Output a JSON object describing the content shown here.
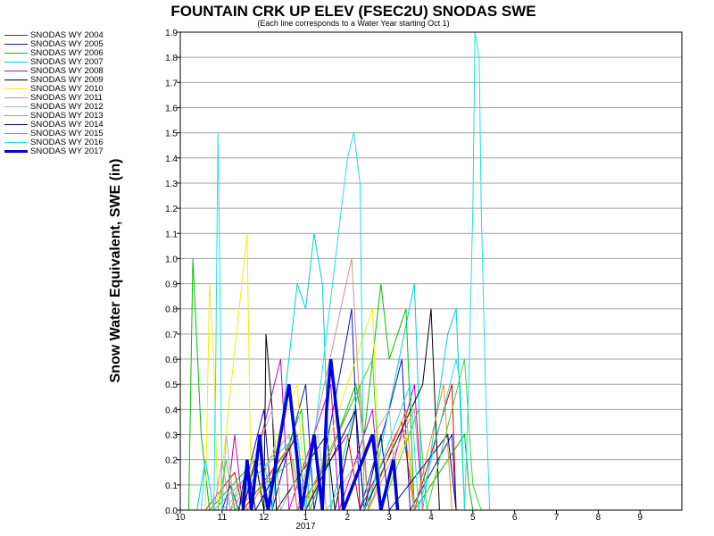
{
  "chart_data": {
    "type": "line",
    "title": "FOUNTAIN CRK UP ELEV (FSEC2U) SNODAS SWE",
    "subtitle": "(Each line corresponds to a Water Year starting Oct 1)",
    "ylabel": "Snow Water Equivalent, SWE (in)",
    "xlabel": "",
    "year_label": "2017",
    "x_ticks": [
      "10",
      "11",
      "12",
      "1",
      "2",
      "3",
      "4",
      "5",
      "6",
      "7",
      "8",
      "9"
    ],
    "y_ticks": [
      "0.0",
      "0.1",
      "0.2",
      "0.3",
      "0.4",
      "0.5",
      "0.6",
      "0.7",
      "0.8",
      "0.9",
      "1.0",
      "1.1",
      "1.2",
      "1.3",
      "1.4",
      "1.5",
      "1.6",
      "1.7",
      "1.8",
      "1.9"
    ],
    "ylim": [
      0,
      1.9
    ],
    "xlim": [
      0,
      12
    ],
    "grid": true,
    "legend_position": "left",
    "series": [
      {
        "name": "SNODAS WY 2004",
        "color": "#e00000",
        "width": 1,
        "points": [
          [
            0.6,
            0
          ],
          [
            1.3,
            0.15
          ],
          [
            1.5,
            0
          ],
          [
            2.6,
            0.25
          ],
          [
            2.8,
            0
          ],
          [
            4.0,
            0.3
          ],
          [
            4.3,
            0
          ],
          [
            5.3,
            0.35
          ],
          [
            5.6,
            0
          ],
          [
            6.5,
            0.5
          ],
          [
            6.6,
            0
          ],
          [
            6.7,
            0
          ]
        ]
      },
      {
        "name": "SNODAS WY 2005",
        "color": "#1010c0",
        "width": 1,
        "points": [
          [
            1.0,
            0
          ],
          [
            1.2,
            0.1
          ],
          [
            1.4,
            0
          ],
          [
            2.0,
            0.4
          ],
          [
            2.2,
            0
          ],
          [
            3.0,
            0.5
          ],
          [
            3.2,
            0
          ],
          [
            4.0,
            0.7
          ],
          [
            4.1,
            0.8
          ],
          [
            4.3,
            0
          ],
          [
            5.0,
            0.4
          ],
          [
            5.3,
            0.6
          ],
          [
            5.5,
            0
          ],
          [
            6.5,
            0.3
          ],
          [
            6.6,
            0
          ]
        ]
      },
      {
        "name": "SNODAS WY 2006",
        "color": "#00c000",
        "width": 1,
        "points": [
          [
            0.2,
            0
          ],
          [
            0.3,
            1.0
          ],
          [
            0.5,
            0.3
          ],
          [
            0.7,
            0
          ],
          [
            1.8,
            0.2
          ],
          [
            2.0,
            0
          ],
          [
            2.9,
            0.4
          ],
          [
            3.1,
            0
          ],
          [
            4.2,
            0.5
          ],
          [
            4.4,
            0.3
          ],
          [
            4.8,
            0.9
          ],
          [
            5.0,
            0.6
          ],
          [
            5.4,
            0.8
          ],
          [
            5.6,
            0
          ],
          [
            6.8,
            0.3
          ],
          [
            6.9,
            0.1
          ],
          [
            7.0,
            0
          ]
        ]
      },
      {
        "name": "SNODAS WY 2007",
        "color": "#00d0d0",
        "width": 1,
        "points": [
          [
            0.4,
            0
          ],
          [
            0.6,
            0.2
          ],
          [
            0.8,
            0
          ],
          [
            2.0,
            0.2
          ],
          [
            2.2,
            0
          ],
          [
            2.8,
            0.9
          ],
          [
            3.0,
            0.8
          ],
          [
            3.2,
            1.1
          ],
          [
            3.4,
            0.9
          ],
          [
            3.6,
            0
          ],
          [
            4.3,
            0.5
          ],
          [
            4.5,
            0
          ],
          [
            5.6,
            0.9
          ],
          [
            5.8,
            0
          ],
          [
            6.4,
            0.7
          ],
          [
            6.6,
            0.8
          ],
          [
            6.8,
            0
          ]
        ]
      },
      {
        "name": "SNODAS WY 2008",
        "color": "#c000c0",
        "width": 1,
        "points": [
          [
            1.1,
            0
          ],
          [
            1.3,
            0.3
          ],
          [
            1.5,
            0
          ],
          [
            2.4,
            0.6
          ],
          [
            2.6,
            0
          ],
          [
            3.6,
            0.5
          ],
          [
            3.8,
            0
          ],
          [
            4.6,
            0.4
          ],
          [
            4.8,
            0
          ],
          [
            5.6,
            0.5
          ],
          [
            5.8,
            0
          ]
        ]
      },
      {
        "name": "SNODAS WY 2009",
        "color": "#000000",
        "width": 1,
        "points": [
          [
            1.5,
            0
          ],
          [
            1.8,
            0.2
          ],
          [
            2.0,
            0
          ],
          [
            2.05,
            0.7
          ],
          [
            2.2,
            0.4
          ],
          [
            2.3,
            0
          ],
          [
            3.5,
            0.3
          ],
          [
            3.7,
            0
          ],
          [
            4.2,
            0.4
          ],
          [
            4.4,
            0
          ],
          [
            5.8,
            0.5
          ],
          [
            6.0,
            0.8
          ],
          [
            6.2,
            0
          ]
        ]
      },
      {
        "name": "SNODAS WY 2010",
        "color": "#f0f000",
        "width": 1,
        "points": [
          [
            0.6,
            0
          ],
          [
            0.7,
            0.9
          ],
          [
            0.8,
            0.6
          ],
          [
            0.9,
            0
          ],
          [
            1.6,
            1.1
          ],
          [
            1.7,
            0
          ],
          [
            2.8,
            0.5
          ],
          [
            3.0,
            0
          ],
          [
            4.6,
            0.8
          ],
          [
            4.8,
            0
          ],
          [
            5.4,
            0.3
          ],
          [
            5.6,
            0
          ]
        ]
      },
      {
        "name": "SNODAS WY 2011",
        "color": "#d09090",
        "width": 1,
        "points": [
          [
            0.8,
            0
          ],
          [
            1.0,
            0.2
          ],
          [
            1.2,
            0
          ],
          [
            2.6,
            0.3
          ],
          [
            2.8,
            0
          ],
          [
            4.1,
            1.0
          ],
          [
            4.3,
            0.4
          ],
          [
            4.5,
            0
          ],
          [
            5.6,
            0.4
          ],
          [
            5.8,
            0
          ]
        ]
      },
      {
        "name": "SNODAS WY 2012",
        "color": "#b0b0b0",
        "width": 1,
        "points": [
          [
            1.0,
            0
          ],
          [
            1.1,
            0.3
          ],
          [
            1.3,
            0
          ],
          [
            2.2,
            0.4
          ],
          [
            2.4,
            0
          ],
          [
            3.3,
            0.3
          ],
          [
            3.5,
            0
          ],
          [
            5.0,
            0.4
          ],
          [
            5.2,
            0
          ]
        ]
      },
      {
        "name": "SNODAS WY 2013",
        "color": "#e09020",
        "width": 1,
        "points": [
          [
            1.2,
            0
          ],
          [
            1.4,
            0.1
          ],
          [
            1.6,
            0
          ],
          [
            2.8,
            0.3
          ],
          [
            3.0,
            0
          ],
          [
            4.3,
            0.5
          ],
          [
            4.5,
            0
          ],
          [
            5.4,
            0.4
          ],
          [
            5.6,
            0
          ],
          [
            6.3,
            0.5
          ],
          [
            6.5,
            0
          ]
        ]
      },
      {
        "name": "SNODAS WY 2014",
        "color": "#000080",
        "width": 1,
        "points": [
          [
            1.4,
            0
          ],
          [
            1.6,
            0.2
          ],
          [
            1.8,
            0
          ],
          [
            2.8,
            0.3
          ],
          [
            3.0,
            0
          ],
          [
            4.2,
            0.4
          ],
          [
            4.4,
            0
          ],
          [
            4.8,
            0.3
          ],
          [
            5.0,
            0
          ],
          [
            6.4,
            0.3
          ],
          [
            6.6,
            0
          ]
        ]
      },
      {
        "name": "SNODAS WY 2015",
        "color": "#40d040",
        "width": 1,
        "points": [
          [
            0.9,
            0
          ],
          [
            1.1,
            0.2
          ],
          [
            1.3,
            0
          ],
          [
            2.7,
            0.2
          ],
          [
            2.9,
            0
          ],
          [
            4.6,
            0.6
          ],
          [
            4.8,
            0
          ],
          [
            5.7,
            0.4
          ],
          [
            5.9,
            0
          ],
          [
            6.8,
            0.6
          ],
          [
            7.0,
            0.1
          ],
          [
            7.2,
            0
          ]
        ]
      },
      {
        "name": "SNODAS WY 2016",
        "color": "#20e0e0",
        "width": 1,
        "points": [
          [
            0.5,
            0
          ],
          [
            0.6,
            0.2
          ],
          [
            0.8,
            0
          ],
          [
            0.85,
            0.6
          ],
          [
            0.9,
            1.5
          ],
          [
            0.95,
            0.9
          ],
          [
            1.0,
            0
          ],
          [
            2.8,
            0.3
          ],
          [
            3.0,
            0
          ],
          [
            4.0,
            1.4
          ],
          [
            4.15,
            1.5
          ],
          [
            4.3,
            1.3
          ],
          [
            4.4,
            0
          ],
          [
            5.5,
            0.5
          ],
          [
            5.7,
            0
          ],
          [
            6.6,
            0.6
          ],
          [
            6.7,
            0.5
          ],
          [
            6.8,
            0
          ],
          [
            6.9,
            0.5
          ],
          [
            7.0,
            1.2
          ],
          [
            7.05,
            1.9
          ],
          [
            7.15,
            1.8
          ],
          [
            7.2,
            1.2
          ],
          [
            7.3,
            0.5
          ],
          [
            7.4,
            0
          ]
        ]
      },
      {
        "name": "SNODAS WY 2017",
        "color": "#0000e0",
        "width": 3.5,
        "points": [
          [
            1.5,
            0
          ],
          [
            1.6,
            0.2
          ],
          [
            1.7,
            0
          ],
          [
            1.9,
            0.3
          ],
          [
            2.0,
            0.1
          ],
          [
            2.1,
            0
          ],
          [
            2.4,
            0.3
          ],
          [
            2.6,
            0.5
          ],
          [
            2.8,
            0.2
          ],
          [
            2.9,
            0
          ],
          [
            3.2,
            0.3
          ],
          [
            3.4,
            0
          ],
          [
            3.5,
            0.4
          ],
          [
            3.6,
            0.6
          ],
          [
            3.8,
            0.3
          ],
          [
            3.9,
            0
          ],
          [
            4.6,
            0.3
          ],
          [
            4.8,
            0
          ],
          [
            5.1,
            0.2
          ],
          [
            5.2,
            0
          ]
        ]
      }
    ]
  }
}
